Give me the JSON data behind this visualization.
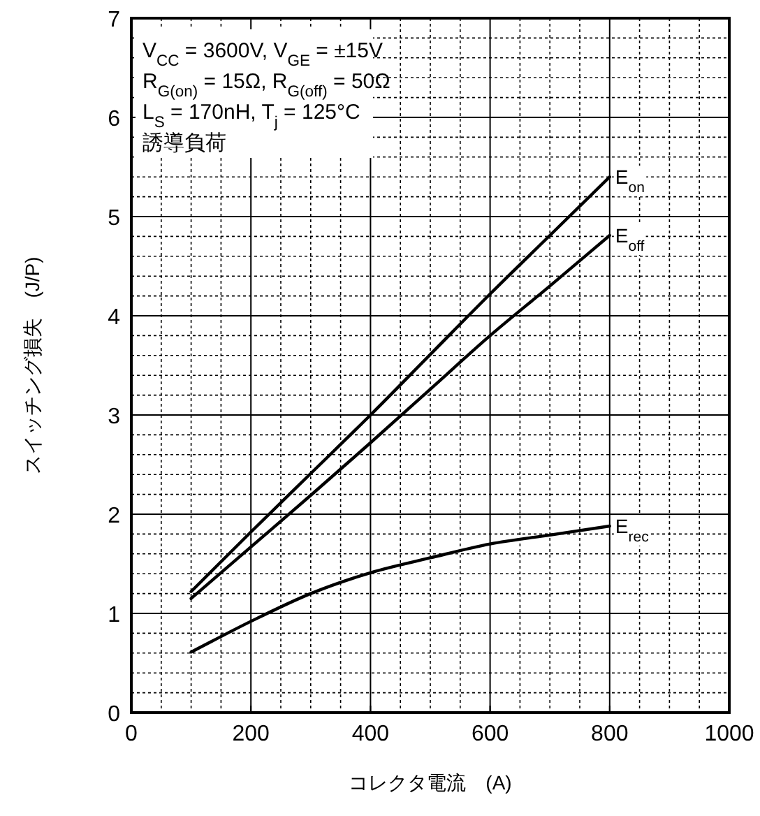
{
  "chart_data": {
    "type": "line",
    "xlabel": "コレクタ電流　(A)",
    "ylabel": "スイッチング損失　(J/P)",
    "xlim": [
      0,
      1000
    ],
    "ylim": [
      0,
      7
    ],
    "xticks": [
      0,
      200,
      400,
      600,
      800,
      1000
    ],
    "yticks": [
      0,
      1,
      2,
      3,
      4,
      5,
      6,
      7
    ],
    "grid": true,
    "marker": "none",
    "line_style": "solid",
    "annotations": [
      "V$_{CC}$ = 3600V, V$_{GE}$ = ±15V",
      "R$_{G(on)}$ = 15Ω, R$_{G(off)}$ = 50Ω",
      "L$_{S}$ = 170nH, T$_{j}$ = 125°C",
      "誘導負荷"
    ],
    "x": [
      100,
      200,
      300,
      400,
      500,
      600,
      700,
      800
    ],
    "series": [
      {
        "name": "E$_{on}$",
        "color": "#000000",
        "values": [
          1.22,
          1.82,
          2.41,
          3.0,
          3.61,
          4.22,
          4.81,
          5.4
        ]
      },
      {
        "name": "E$_{off}$",
        "color": "#000000",
        "values": [
          1.15,
          1.67,
          2.19,
          2.72,
          3.26,
          3.8,
          4.3,
          4.81
        ]
      },
      {
        "name": "E$_{rec}$",
        "color": "#000000",
        "values": [
          0.61,
          0.92,
          1.2,
          1.41,
          1.56,
          1.7,
          1.79,
          1.88
        ]
      }
    ]
  }
}
